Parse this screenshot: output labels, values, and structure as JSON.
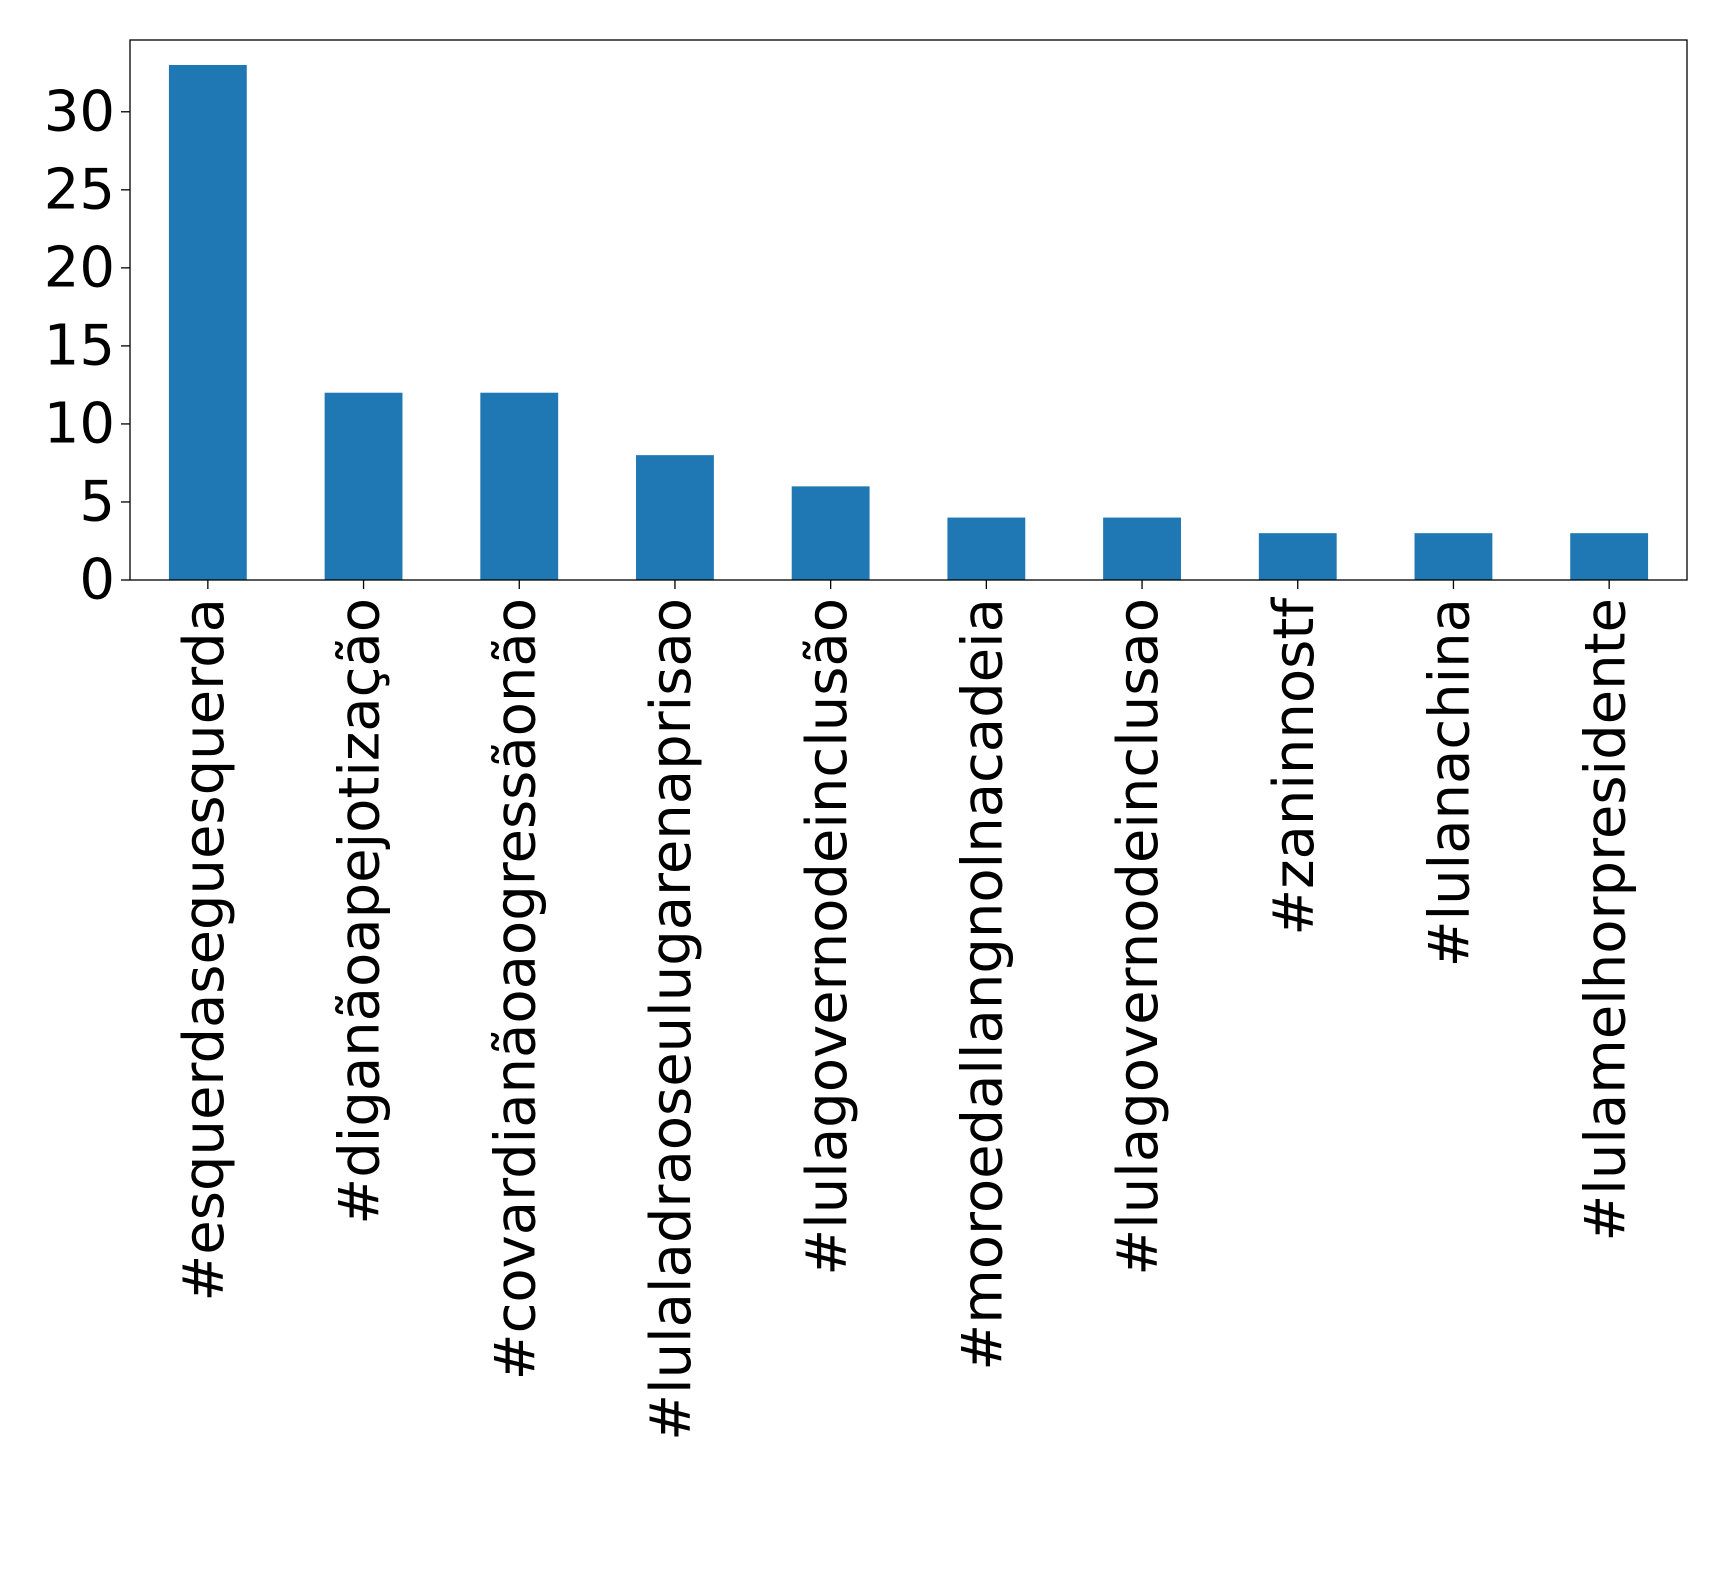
{
  "chart_data": {
    "type": "bar",
    "title": "",
    "xlabel": "",
    "ylabel": "",
    "categories": [
      "#esquerdaseguesquerda",
      "#diganãoapejotização",
      "#covardianãoaogressãonão",
      "#lulaladraoseulugarenaprisao",
      "#lulagovernodeinclusão",
      "#moroedallangnolnacadeia",
      "#lulagovernodeinclusao",
      "#zaninnostf",
      "#lulanachina",
      "#lulamelhorpresidente"
    ],
    "values": [
      33,
      12,
      12,
      8,
      6,
      4,
      4,
      3,
      3,
      3
    ],
    "ylim": [
      0,
      34.6
    ],
    "yticks": [
      0,
      5,
      10,
      15,
      20,
      25,
      30
    ],
    "bar_color": "#1f77b4",
    "grid": false,
    "legend": "none"
  }
}
